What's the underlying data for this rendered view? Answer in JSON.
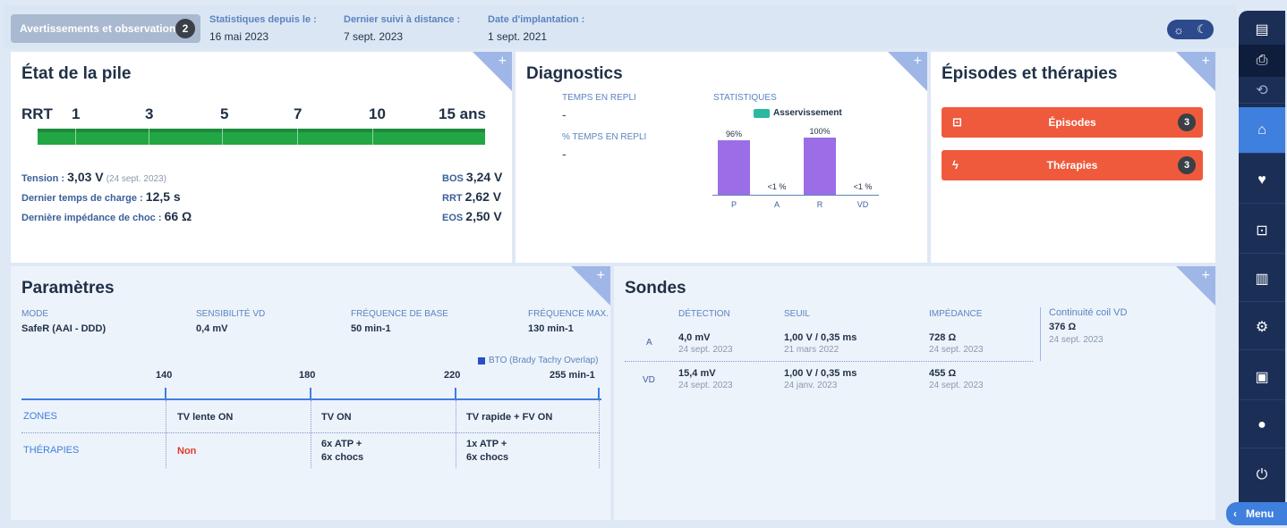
{
  "topbar": {
    "alerts_label": "Avertissements et observations",
    "alerts_count": "2",
    "stats_since_label": "Statistiques depuis le :",
    "stats_since_value": "16 mai 2023",
    "last_remote_label": "Dernier suivi à distance :",
    "last_remote_value": "7 sept. 2023",
    "implant_label": "Date d'implantation :",
    "implant_value": "1 sept. 2021",
    "theme_icons": [
      "sun-icon",
      "moon-icon"
    ]
  },
  "battery": {
    "title": "État de la pile",
    "scale_labels": [
      "RRT",
      "1",
      "3",
      "5",
      "7",
      "10",
      "15 ans"
    ],
    "bar_color": "#22a744",
    "tension_label": "Tension :",
    "tension_value": "3,03 V",
    "tension_date": "(24 sept. 2023)",
    "charge_label": "Dernier temps de charge :",
    "charge_value": "12,5 s",
    "impedance_label": "Dernière impédance de choc :",
    "impedance_value": "66 Ω",
    "bos_label": "BOS",
    "bos_value": "3,24 V",
    "rrt_label": "RRT",
    "rrt_value": "2,62 V",
    "eos_label": "EOS",
    "eos_value": "2,50 V"
  },
  "diagnostics": {
    "title": "Diagnostics",
    "fallback_time_label": "TEMPS EN REPLI",
    "fallback_time_value": "-",
    "fallback_pct_label": "% TEMPS EN REPLI",
    "fallback_pct_value": "-",
    "stats_label": "STATISTIQUES",
    "legend_label": "Asservissement",
    "legend_color": "#2bb8a0",
    "bar_color": "#9b6ee8"
  },
  "chart_data": {
    "type": "bar",
    "categories": [
      "P",
      "A",
      "R",
      "VD"
    ],
    "values": [
      96,
      0.5,
      100,
      0.5
    ],
    "data_labels": [
      "96%",
      "<1 %",
      "100%",
      "<1 %"
    ],
    "ylim": [
      0,
      100
    ]
  },
  "episodes": {
    "title": "Épisodes et thérapies",
    "episodes_label": "Épisodes",
    "episodes_count": "3",
    "therapies_label": "Thérapies",
    "therapies_count": "3",
    "button_color": "#ef5a3c"
  },
  "params": {
    "title": "Paramètres",
    "mode_label": "MODE",
    "mode_value": "SafeR (AAI - DDD)",
    "sens_label": "SENSIBILITÉ VD",
    "sens_value": "0,4 mV",
    "base_label": "FRÉQUENCE DE BASE",
    "base_value": "50 min-1",
    "max_label": "FRÉQUENCE MAX.",
    "max_value": "130 min-1",
    "bto_label": "BTO (Brady Tachy Overlap)",
    "scale": [
      "140",
      "180",
      "220",
      "255 min-1"
    ],
    "zones_label": "ZONES",
    "therapies_label": "THÉRAPIES",
    "zones": [
      "TV lente ON",
      "TV ON",
      "TV rapide + FV ON"
    ],
    "therapies": [
      "Non",
      "6x ATP +\n6x chocs",
      "1x ATP +\n6x chocs"
    ]
  },
  "leads": {
    "title": "Sondes",
    "col_detection": "DÉTECTION",
    "col_threshold": "SEUIL",
    "col_impedance": "IMPÉDANCE",
    "coil_label": "Continuité coil VD",
    "coil_value": "376 Ω",
    "coil_date": "24 sept. 2023",
    "rows": [
      {
        "name": "A",
        "det": "4,0 mV",
        "det_date": "24 sept. 2023",
        "thr": "1,00 V / 0,35 ms",
        "thr_date": "21 mars 2022",
        "imp": "728 Ω",
        "imp_date": "24 sept. 2023"
      },
      {
        "name": "VD",
        "det": "15,4 mV",
        "det_date": "24 sept. 2023",
        "thr": "1,00 V / 0,35 ms",
        "thr_date": "24 janv. 2023",
        "imp": "455 Ω",
        "imp_date": "24 sept. 2023"
      }
    ]
  },
  "sidebar": {
    "items": [
      "document-icon",
      "printer-icon",
      "sync-icon",
      "home-icon",
      "heart-icon",
      "monitor-icon",
      "chart-icon",
      "gear-icon",
      "book-icon",
      "user-icon",
      "power-icon"
    ],
    "menu_label": "Menu"
  }
}
